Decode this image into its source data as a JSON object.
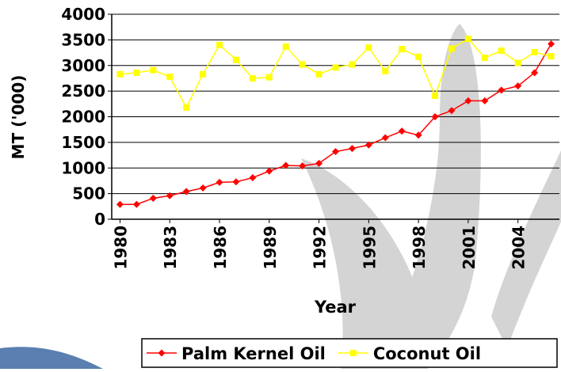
{
  "chart_data": {
    "type": "line",
    "y_label": "MT ('000)",
    "x_label": "Year",
    "x": [
      1980,
      1981,
      1982,
      1983,
      1984,
      1985,
      1986,
      1987,
      1988,
      1989,
      1990,
      1991,
      1992,
      1993,
      1994,
      1995,
      1996,
      1997,
      1998,
      1999,
      2000,
      2001,
      2002,
      2003,
      2004,
      2005,
      2006
    ],
    "xlim": [
      1979.5,
      2006.5
    ],
    "xticks": [
      1980,
      1983,
      1986,
      1989,
      1992,
      1995,
      1998,
      2001,
      2004
    ],
    "ylim": [
      0,
      4000
    ],
    "yticks": [
      0,
      500,
      1000,
      1500,
      2000,
      2500,
      3000,
      3500,
      4000
    ],
    "grid": true,
    "legend": "bottom",
    "series": [
      {
        "name": "Palm Kernel Oil",
        "color": "#ff0000",
        "marker": "diamond",
        "values": [
          290,
          290,
          410,
          460,
          540,
          610,
          720,
          730,
          810,
          940,
          1050,
          1040,
          1090,
          1320,
          1380,
          1450,
          1590,
          1720,
          1640,
          2000,
          2120,
          2310,
          2310,
          2520,
          2600,
          2860,
          3420
        ]
      },
      {
        "name": "Coconut Oil",
        "color": "#ffff00",
        "marker": "square",
        "values": [
          2830,
          2860,
          2910,
          2780,
          2180,
          2830,
          3400,
          3110,
          2750,
          2770,
          3370,
          3020,
          2830,
          2960,
          3020,
          3350,
          2890,
          3320,
          3170,
          2410,
          3330,
          3520,
          3150,
          3290,
          3050,
          3260,
          3180
        ]
      }
    ]
  }
}
